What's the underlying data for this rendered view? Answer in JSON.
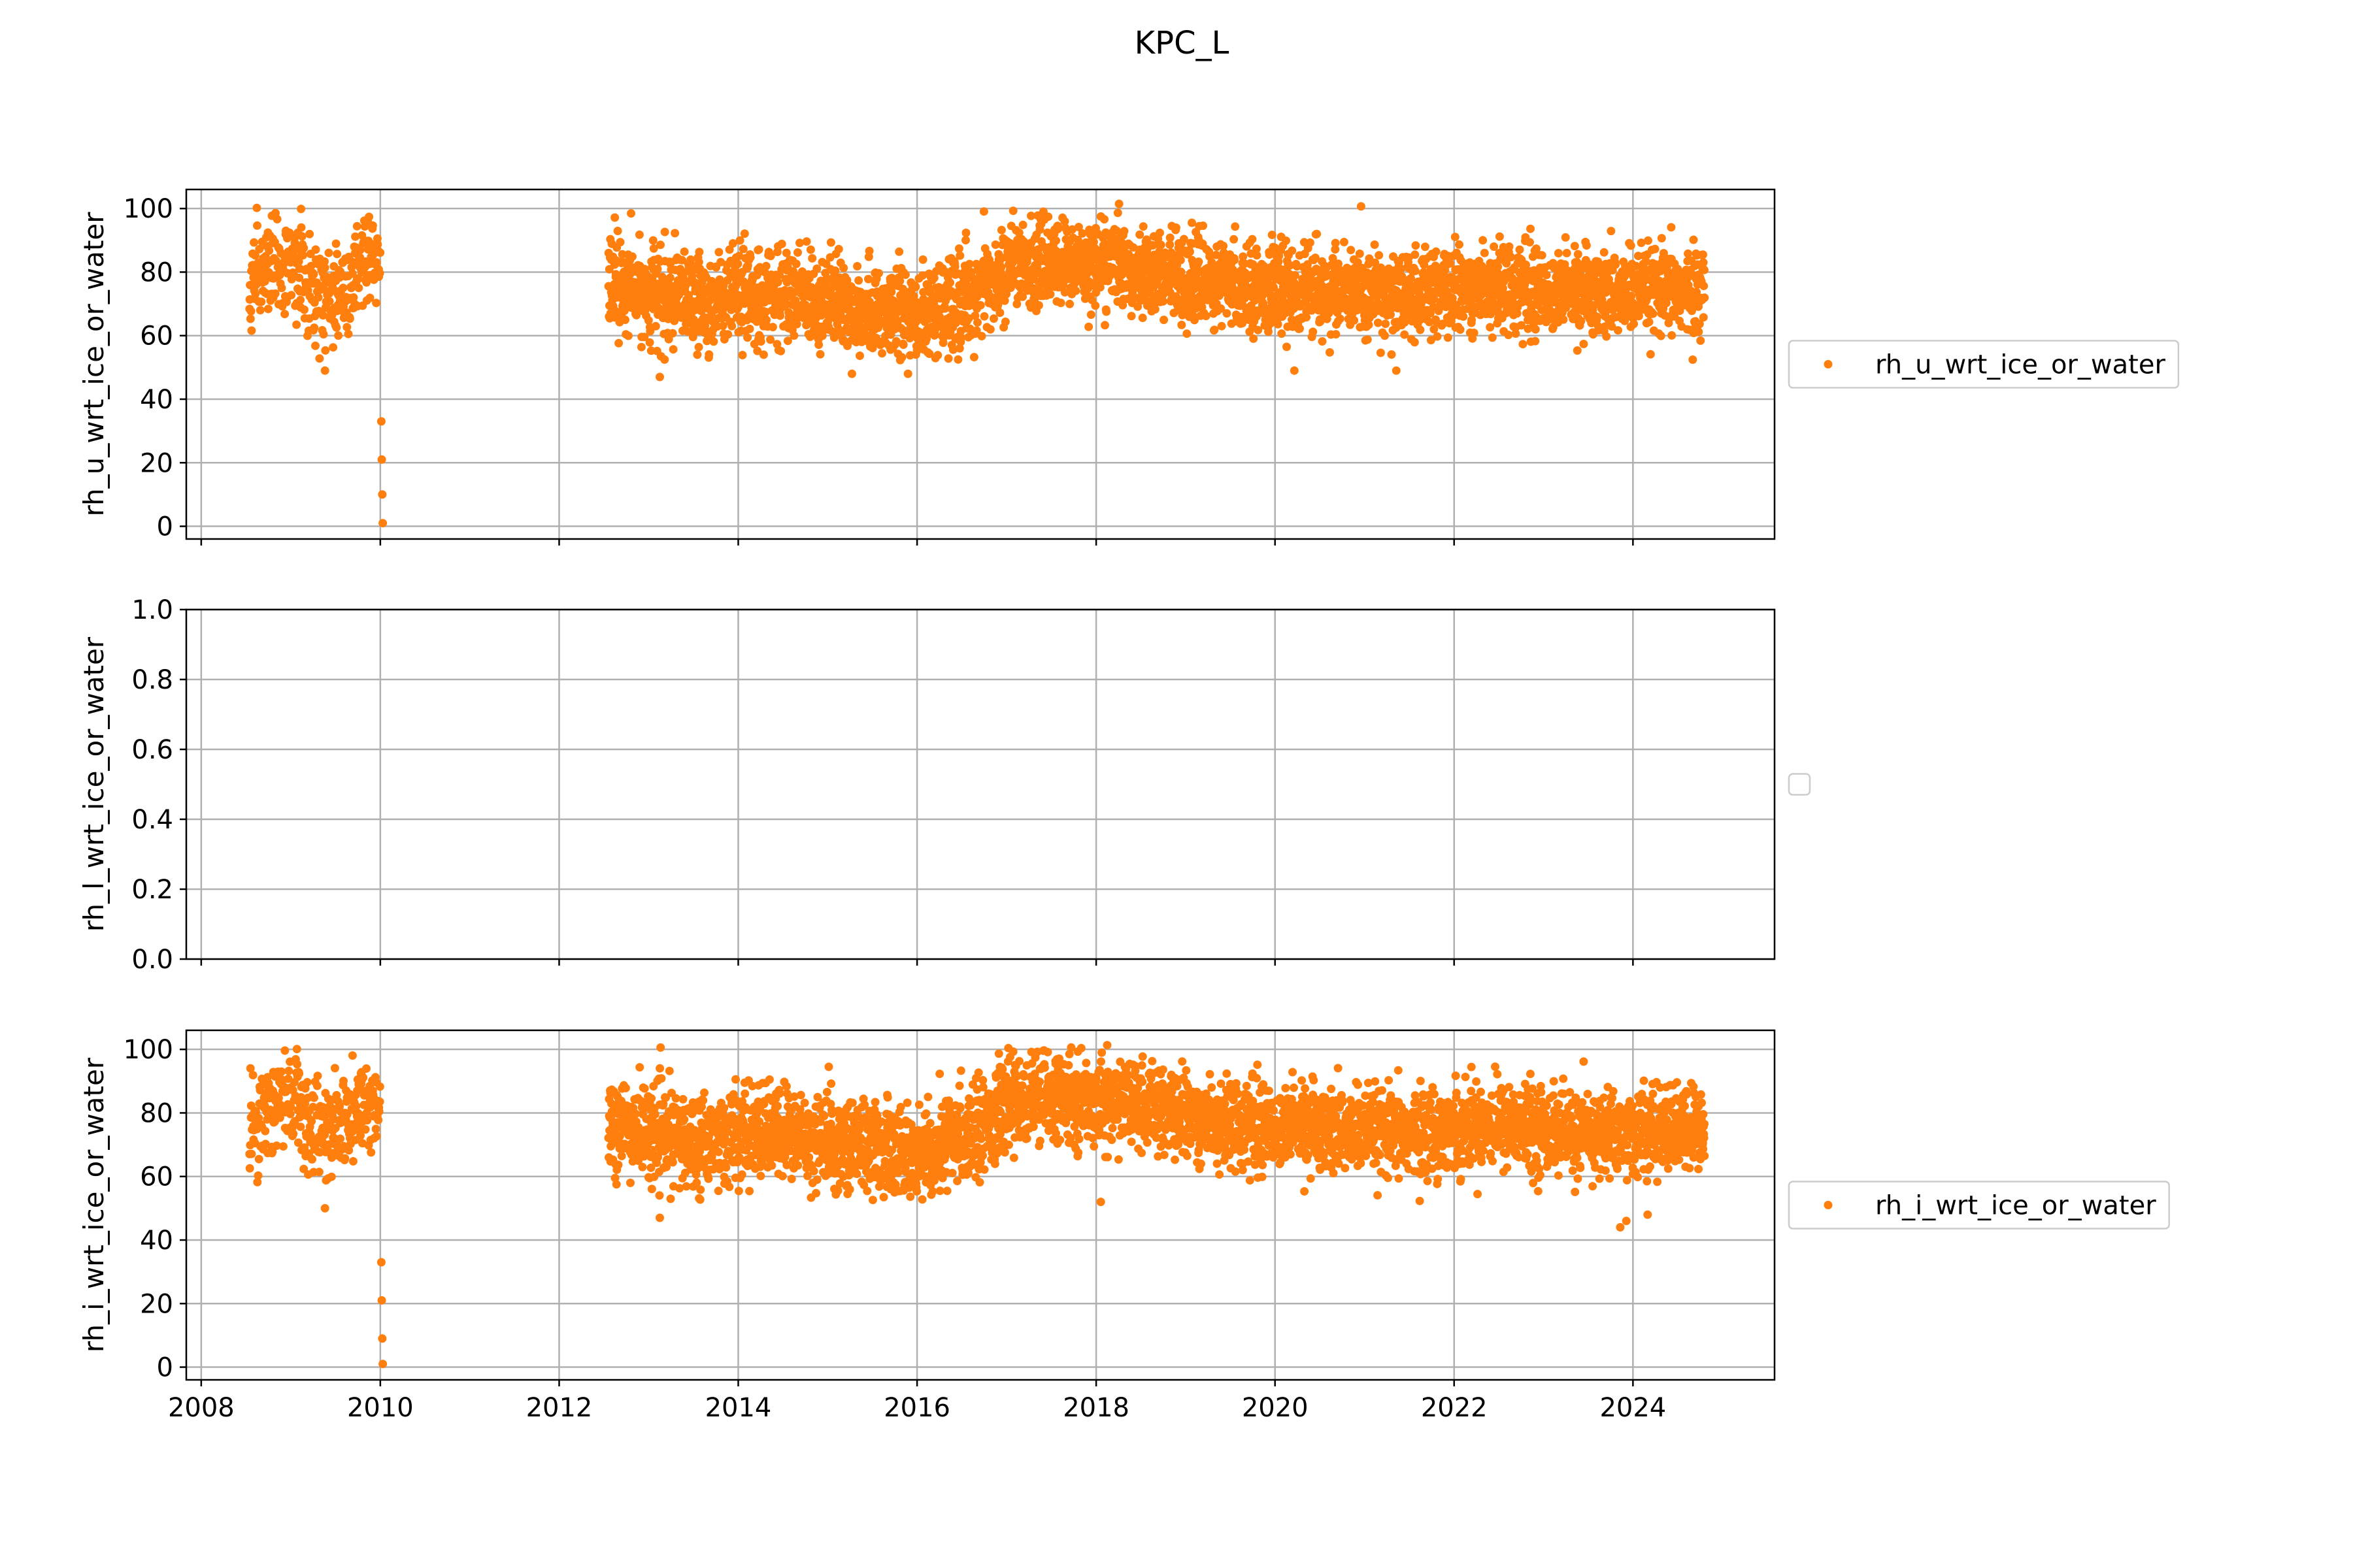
{
  "figure": {
    "title": "KPC_L"
  },
  "chart_data": [
    {
      "type": "scatter",
      "ylabel": "rh_u_wrt_ice_or_water",
      "xlim": [
        "2007-11-01",
        "2025-08-01"
      ],
      "ylim": [
        -4,
        106
      ],
      "yticks": [
        0,
        20,
        40,
        60,
        80,
        100
      ],
      "xticks": [
        "2008",
        "2010",
        "2012",
        "2014",
        "2016",
        "2018",
        "2020",
        "2022",
        "2024"
      ],
      "show_xtick_labels": false,
      "grid": true,
      "legend": {
        "placement": "outside-right",
        "entries": [
          "rh_u_wrt_ice_or_water"
        ]
      },
      "series": [
        {
          "name": "rh_u_wrt_ice_or_water",
          "color": "#ff7f0e",
          "points": [
            [
              "2010-01-05",
              33
            ],
            [
              "2010-01-07",
              21
            ],
            [
              "2010-01-09",
              10
            ],
            [
              "2010-01-11",
              1
            ],
            [
              "2009-05-20",
              49
            ],
            [
              "2013-02-15",
              47
            ],
            [
              "2015-04-10",
              48
            ],
            [
              "2015-11-25",
              48
            ],
            [
              "2020-03-20",
              49
            ],
            [
              "2021-05-10",
              49
            ]
          ],
          "segments": [
            {
              "start": "2008-07-15",
              "end": "2010-01-01",
              "knots": [
                [
                  "2008-07-15",
                  77
                ],
                [
                  "2008-12-01",
                  84
                ],
                [
                  "2009-06-01",
                  71
                ],
                [
                  "2009-12-15",
                  83
                ]
              ],
              "spread": 11,
              "count": 340
            },
            {
              "start": "2012-07-20",
              "end": "2016-12-31",
              "knots": [
                [
                  "2012-08-01",
                  76
                ],
                [
                  "2013-06-01",
                  70
                ],
                [
                  "2014-06-01",
                  73
                ],
                [
                  "2015-06-01",
                  69
                ],
                [
                  "2016-03-01",
                  66
                ],
                [
                  "2016-12-01",
                  78
                ]
              ],
              "spread": 10,
              "count": 1500
            },
            {
              "start": "2017-01-01",
              "end": "2024-10-20",
              "knots": [
                [
                  "2017-01-01",
                  82
                ],
                [
                  "2018-03-01",
                  83
                ],
                [
                  "2019-06-01",
                  76
                ],
                [
                  "2020-06-01",
                  74
                ],
                [
                  "2021-06-01",
                  72
                ],
                [
                  "2022-06-01",
                  76
                ],
                [
                  "2023-06-01",
                  73
                ],
                [
                  "2024-10-01",
                  74
                ]
              ],
              "spread": 9,
              "count": 2700
            }
          ]
        }
      ]
    },
    {
      "type": "scatter",
      "ylabel": "rh_l_wrt_ice_or_water",
      "xlim": [
        "2007-11-01",
        "2025-08-01"
      ],
      "ylim": [
        0,
        1
      ],
      "yticks": [
        0.0,
        0.2,
        0.4,
        0.6,
        0.8,
        1.0
      ],
      "ytick_labels": [
        "0.0",
        "0.2",
        "0.4",
        "0.6",
        "0.8",
        "1.0"
      ],
      "xticks": [
        "2008",
        "2010",
        "2012",
        "2014",
        "2016",
        "2018",
        "2020",
        "2022",
        "2024"
      ],
      "show_xtick_labels": false,
      "grid": true,
      "legend": {
        "placement": "outside-right",
        "entries": []
      },
      "series": []
    },
    {
      "type": "scatter",
      "ylabel": "rh_i_wrt_ice_or_water",
      "xlim": [
        "2007-11-01",
        "2025-08-01"
      ],
      "ylim": [
        -4,
        106
      ],
      "yticks": [
        0,
        20,
        40,
        60,
        80,
        100
      ],
      "xticks": [
        "2008",
        "2010",
        "2012",
        "2014",
        "2016",
        "2018",
        "2020",
        "2022",
        "2024"
      ],
      "show_xtick_labels": true,
      "grid": true,
      "legend": {
        "placement": "outside-right",
        "entries": [
          "rh_i_wrt_ice_or_water"
        ]
      },
      "series": [
        {
          "name": "rh_i_wrt_ice_or_water",
          "color": "#ff7f0e",
          "points": [
            [
              "2010-01-05",
              33
            ],
            [
              "2010-01-07",
              21
            ],
            [
              "2010-01-09",
              9
            ],
            [
              "2010-01-11",
              1
            ],
            [
              "2009-05-20",
              50
            ],
            [
              "2013-02-15",
              47
            ],
            [
              "2023-11-10",
              44
            ],
            [
              "2023-12-05",
              46
            ],
            [
              "2024-03-01",
              48
            ],
            [
              "2018-01-20",
              52
            ]
          ],
          "segments": [
            {
              "start": "2008-07-15",
              "end": "2010-01-01",
              "knots": [
                [
                  "2008-07-15",
                  77
                ],
                [
                  "2008-12-01",
                  85
                ],
                [
                  "2009-06-01",
                  72
                ],
                [
                  "2009-12-15",
                  84
                ]
              ],
              "spread": 11,
              "count": 340
            },
            {
              "start": "2012-07-20",
              "end": "2016-12-31",
              "knots": [
                [
                  "2012-08-01",
                  77
                ],
                [
                  "2013-06-01",
                  71
                ],
                [
                  "2014-06-01",
                  74
                ],
                [
                  "2015-06-01",
                  70
                ],
                [
                  "2016-03-01",
                  67
                ],
                [
                  "2016-12-01",
                  80
                ]
              ],
              "spread": 10,
              "count": 1500
            },
            {
              "start": "2017-01-01",
              "end": "2024-10-20",
              "knots": [
                [
                  "2017-01-01",
                  84
                ],
                [
                  "2018-03-01",
                  84
                ],
                [
                  "2019-06-01",
                  77
                ],
                [
                  "2020-06-01",
                  75
                ],
                [
                  "2021-06-01",
                  73
                ],
                [
                  "2022-06-01",
                  77
                ],
                [
                  "2023-06-01",
                  73
                ],
                [
                  "2024-10-01",
                  75
                ]
              ],
              "spread": 9,
              "count": 2700
            }
          ]
        }
      ]
    }
  ]
}
